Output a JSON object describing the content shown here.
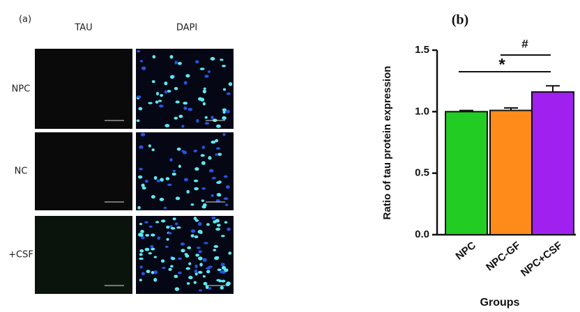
{
  "panel_a": {
    "label": "(a)",
    "columns": [
      "TAU",
      "DAPI"
    ],
    "rows": [
      "NPC",
      "NC",
      "+CSF"
    ]
  },
  "chart_data": {
    "type": "bar",
    "title": "(b)",
    "x_label": "Groups",
    "y_label": "Ratio of tau protein expression",
    "categories": [
      "NPC",
      "NPC-GF",
      "NPC+CSF"
    ],
    "values": [
      1.0,
      1.01,
      1.16
    ],
    "errors": [
      0.01,
      0.02,
      0.05
    ],
    "colors": [
      "#22cc22",
      "#ff8c1a",
      "#a020f0"
    ],
    "ylim": [
      0,
      1.5
    ],
    "yticks": [
      {
        "value": 0,
        "label": "0.0"
      },
      0.5,
      {
        "value": 1,
        "label": "1.0"
      },
      1.5
    ],
    "annotations": [
      "*",
      "#"
    ]
  }
}
